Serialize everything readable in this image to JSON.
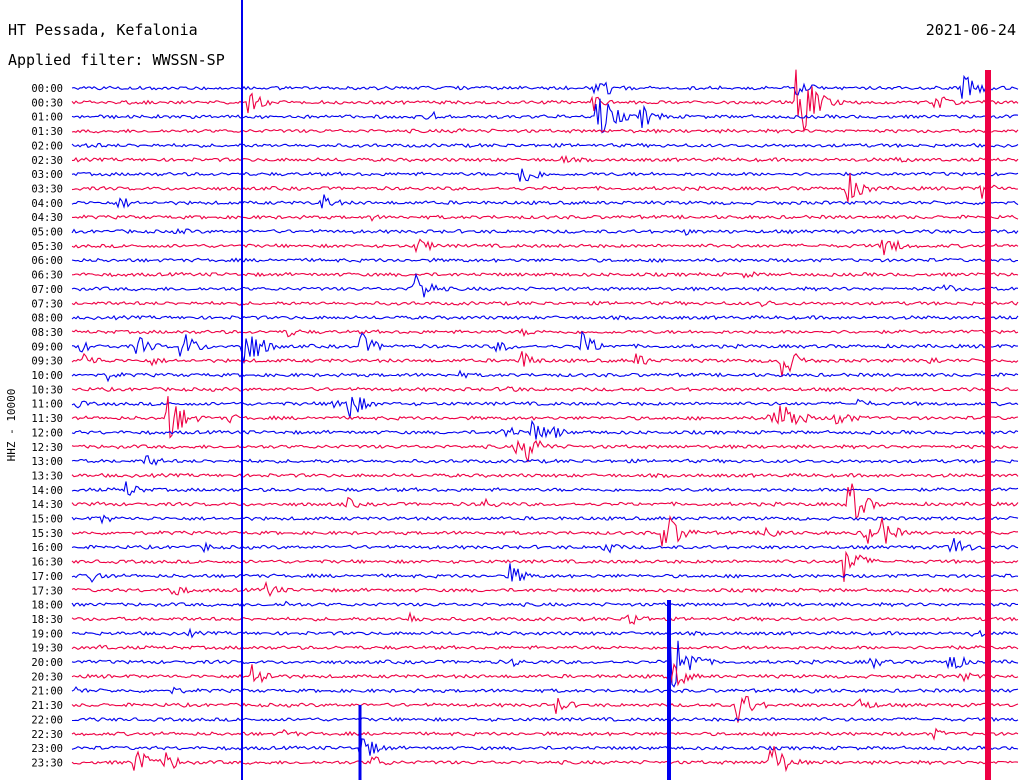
{
  "header": {
    "station": "HT Pessada, Kefalonia",
    "filter": "Applied filter: WWSSN-SP",
    "date": "2021-06-24"
  },
  "chart_data": {
    "type": "line",
    "title": "HT Pessada, Kefalonia",
    "subtitle": "Applied filter: WWSSN-SP",
    "ylabel": "HHZ - 10000",
    "grid": false,
    "series": [
      {
        "name": "",
        "color": "#0000ee"
      },
      {
        "name": "",
        "color": "#ee0044"
      }
    ],
    "traces": [
      {
        "time": "00:00",
        "color_index": 0,
        "events": [
          [
            595,
            14
          ],
          [
            607,
            8
          ],
          [
            797,
            10
          ],
          [
            963,
            16
          ]
        ]
      },
      {
        "time": "00:30",
        "color_index": 1,
        "events": [
          [
            248,
            12
          ],
          [
            592,
            10
          ],
          [
            797,
            55
          ],
          [
            935,
            10
          ]
        ]
      },
      {
        "time": "01:00",
        "color_index": 0,
        "events": [
          [
            428,
            8
          ],
          [
            597,
            30
          ],
          [
            641,
            14
          ]
        ]
      },
      {
        "time": "01:30",
        "color_index": 1,
        "events": [
          [
            458,
            4
          ]
        ]
      },
      {
        "time": "02:00",
        "color_index": 0,
        "events": [
          [
            88,
            5
          ]
        ]
      },
      {
        "time": "02:30",
        "color_index": 1,
        "events": [
          [
            562,
            5
          ],
          [
            897,
            5
          ]
        ]
      },
      {
        "time": "03:00",
        "color_index": 0,
        "events": [
          [
            520,
            16
          ]
        ]
      },
      {
        "time": "03:30",
        "color_index": 1,
        "events": [
          [
            848,
            18
          ],
          [
            980,
            12
          ]
        ]
      },
      {
        "time": "04:00",
        "color_index": 0,
        "events": [
          [
            119,
            8
          ],
          [
            322,
            10
          ]
        ]
      },
      {
        "time": "04:30",
        "color_index": 1,
        "events": [
          [
            372,
            4
          ]
        ]
      },
      {
        "time": "05:00",
        "color_index": 0,
        "events": [
          [
            178,
            5
          ],
          [
            685,
            4
          ]
        ]
      },
      {
        "time": "05:30",
        "color_index": 1,
        "events": [
          [
            417,
            10
          ],
          [
            883,
            14
          ]
        ]
      },
      {
        "time": "06:00",
        "color_index": 0,
        "events": []
      },
      {
        "time": "06:30",
        "color_index": 1,
        "events": [
          [
            745,
            5
          ]
        ]
      },
      {
        "time": "07:00",
        "color_index": 0,
        "events": [
          [
            413,
            24
          ],
          [
            940,
            8
          ]
        ]
      },
      {
        "time": "07:30",
        "color_index": 1,
        "events": [
          [
            763,
            5
          ]
        ]
      },
      {
        "time": "08:00",
        "color_index": 0,
        "events": []
      },
      {
        "time": "08:30",
        "color_index": 1,
        "events": [
          [
            288,
            6
          ],
          [
            523,
            5
          ]
        ]
      },
      {
        "time": "09:00",
        "color_index": 0,
        "events": [
          [
            80,
            7
          ],
          [
            137,
            12
          ],
          [
            181,
            18
          ],
          [
            244,
            30
          ],
          [
            361,
            14
          ],
          [
            497,
            8
          ],
          [
            581,
            16
          ]
        ]
      },
      {
        "time": "09:30",
        "color_index": 1,
        "events": [
          [
            83,
            10
          ],
          [
            150,
            6
          ],
          [
            520,
            12
          ],
          [
            636,
            8
          ],
          [
            780,
            22
          ],
          [
            928,
            6
          ]
        ]
      },
      {
        "time": "10:00",
        "color_index": 0,
        "events": [
          [
            108,
            6
          ],
          [
            460,
            4
          ]
        ]
      },
      {
        "time": "10:30",
        "color_index": 1,
        "events": [
          [
            508,
            5
          ]
        ]
      },
      {
        "time": "11:00",
        "color_index": 0,
        "events": [
          [
            75,
            5
          ],
          [
            332,
            8
          ],
          [
            348,
            18
          ],
          [
            857,
            6
          ]
        ]
      },
      {
        "time": "11:30",
        "color_index": 1,
        "events": [
          [
            168,
            30
          ],
          [
            228,
            6
          ],
          [
            770,
            10
          ],
          [
            781,
            26
          ],
          [
            835,
            12
          ]
        ]
      },
      {
        "time": "12:00",
        "color_index": 0,
        "events": [
          [
            503,
            10
          ],
          [
            531,
            14
          ],
          [
            552,
            8
          ]
        ]
      },
      {
        "time": "12:30",
        "color_index": 1,
        "events": [
          [
            515,
            8
          ],
          [
            526,
            18
          ]
        ]
      },
      {
        "time": "13:00",
        "color_index": 0,
        "events": [
          [
            146,
            8
          ]
        ]
      },
      {
        "time": "13:30",
        "color_index": 1,
        "events": []
      },
      {
        "time": "14:00",
        "color_index": 0,
        "events": [
          [
            125,
            10
          ]
        ]
      },
      {
        "time": "14:30",
        "color_index": 1,
        "events": [
          [
            95,
            4
          ],
          [
            345,
            8
          ],
          [
            483,
            8
          ],
          [
            847,
            30
          ]
        ]
      },
      {
        "time": "15:00",
        "color_index": 0,
        "events": [
          [
            100,
            6
          ]
        ]
      },
      {
        "time": "15:30",
        "color_index": 1,
        "events": [
          [
            663,
            30
          ],
          [
            765,
            12
          ],
          [
            866,
            16
          ],
          [
            881,
            16
          ]
        ]
      },
      {
        "time": "16:00",
        "color_index": 0,
        "events": [
          [
            202,
            6
          ],
          [
            604,
            8
          ],
          [
            951,
            14
          ]
        ]
      },
      {
        "time": "16:30",
        "color_index": 1,
        "events": [
          [
            844,
            22
          ]
        ]
      },
      {
        "time": "17:00",
        "color_index": 0,
        "events": [
          [
            92,
            8
          ],
          [
            509,
            14
          ]
        ]
      },
      {
        "time": "17:30",
        "color_index": 1,
        "events": [
          [
            170,
            10
          ],
          [
            265,
            10
          ]
        ]
      },
      {
        "time": "18:00",
        "color_index": 0,
        "events": [
          [
            286,
            4
          ]
        ]
      },
      {
        "time": "18:30",
        "color_index": 1,
        "events": [
          [
            408,
            8
          ],
          [
            628,
            10
          ]
        ]
      },
      {
        "time": "19:00",
        "color_index": 0,
        "events": [
          [
            188,
            5
          ],
          [
            973,
            6
          ]
        ]
      },
      {
        "time": "19:30",
        "color_index": 1,
        "events": [
          [
            98,
            4
          ],
          [
            946,
            4
          ]
        ]
      },
      {
        "time": "20:00",
        "color_index": 0,
        "events": [
          [
            512,
            5
          ],
          [
            671,
            48
          ],
          [
            870,
            8
          ],
          [
            947,
            14
          ]
        ]
      },
      {
        "time": "20:30",
        "color_index": 1,
        "events": [
          [
            252,
            16
          ],
          [
            670,
            18
          ],
          [
            961,
            6
          ]
        ]
      },
      {
        "time": "21:00",
        "color_index": 0,
        "events": [
          [
            74,
            5
          ],
          [
            173,
            5
          ],
          [
            810,
            5
          ]
        ]
      },
      {
        "time": "21:30",
        "color_index": 1,
        "events": [
          [
            556,
            10
          ],
          [
            737,
            22
          ],
          [
            856,
            10
          ]
        ]
      },
      {
        "time": "22:00",
        "color_index": 0,
        "events": []
      },
      {
        "time": "22:30",
        "color_index": 1,
        "events": [
          [
            282,
            6
          ],
          [
            933,
            6
          ]
        ]
      },
      {
        "time": "23:00",
        "color_index": 0,
        "events": [
          [
            361,
            16
          ]
        ]
      },
      {
        "time": "23:30",
        "color_index": 1,
        "events": [
          [
            135,
            18
          ],
          [
            166,
            12
          ],
          [
            370,
            10
          ],
          [
            770,
            26
          ]
        ]
      }
    ]
  }
}
